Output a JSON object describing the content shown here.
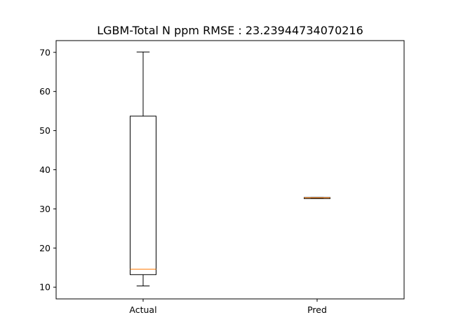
{
  "chart_data": {
    "type": "box",
    "title": "LGBM-Total N ppm RMSE : 23.23944734070216",
    "xlabel": "",
    "ylabel": "",
    "ylim": [
      7.0,
      73.0
    ],
    "yticks": [
      10,
      20,
      30,
      40,
      50,
      60,
      70
    ],
    "categories": [
      "Actual",
      "Pred"
    ],
    "boxes": [
      {
        "category": "Actual",
        "whisker_low": 10.3,
        "q1": 13.2,
        "median": 14.6,
        "q3": 53.7,
        "whisker_high": 70.1
      },
      {
        "category": "Pred",
        "whisker_low": 32.75,
        "q1": 32.75,
        "median": 32.82,
        "q3": 32.9,
        "whisker_high": 32.9
      }
    ],
    "grid": false,
    "box_color": "#000000",
    "median_color": "#ff7f0e"
  }
}
